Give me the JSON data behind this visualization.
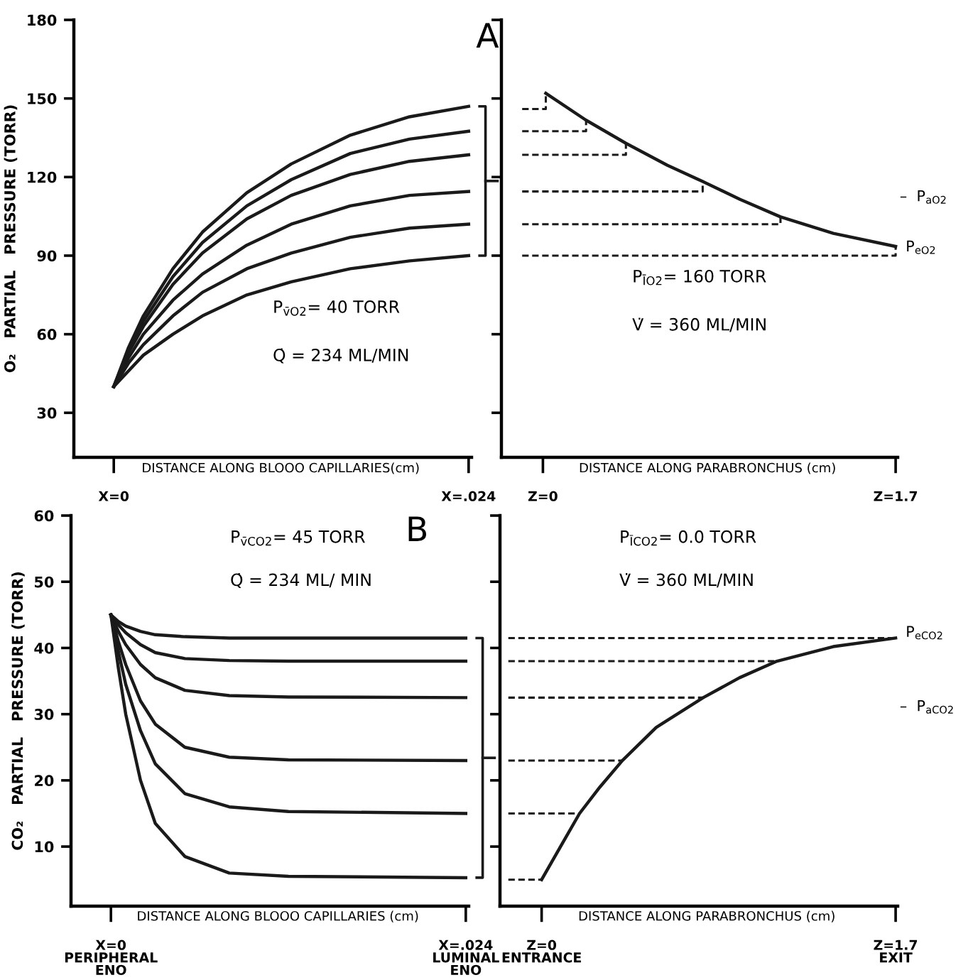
{
  "chart_data": [
    {
      "type": "line",
      "title": "A",
      "ylabel": "O₂   PARTIAL   PRESSURE (TORR)",
      "xlabel": "DISTANCE ALONG BLOOO CAPILLARIES(cm)",
      "xlim": [
        -0.0027,
        0.0242
      ],
      "ylim": [
        13,
        180
      ],
      "xticks": [
        {
          "value": 0,
          "label": "X=0"
        },
        {
          "value": 0.024,
          "label": "X=.024"
        }
      ],
      "yticks": [
        30,
        60,
        90,
        120,
        150,
        180
      ],
      "marker": "none",
      "line_style": "solid",
      "annotations": [
        "P$_{v̄O2}$= 40 TORR",
        "Q̇ = 234 ML/MIN"
      ],
      "series": [
        {
          "color": "#1a1a1a",
          "x": [
            0,
            0.001,
            0.002,
            0.004,
            0.006,
            0.009,
            0.012,
            0.016,
            0.02,
            0.024
          ],
          "values": [
            40,
            55,
            67,
            85,
            99,
            114,
            125,
            136,
            143,
            147
          ]
        },
        {
          "color": "#1a1a1a",
          "x": [
            0,
            0.001,
            0.002,
            0.004,
            0.006,
            0.009,
            0.012,
            0.016,
            0.02,
            0.024
          ],
          "values": [
            40,
            54,
            65,
            82,
            95,
            109,
            119,
            129,
            134.5,
            137.5
          ]
        },
        {
          "color": "#1a1a1a",
          "x": [
            0,
            0.001,
            0.002,
            0.004,
            0.006,
            0.009,
            0.012,
            0.016,
            0.02,
            0.024
          ],
          "values": [
            40,
            53,
            63,
            79,
            91,
            104,
            113,
            121,
            126,
            128.5
          ]
        },
        {
          "color": "#1a1a1a",
          "x": [
            0,
            0.001,
            0.002,
            0.004,
            0.006,
            0.009,
            0.012,
            0.016,
            0.02,
            0.024
          ],
          "values": [
            40,
            51,
            60,
            73,
            83,
            94,
            102,
            109,
            113,
            114.5
          ]
        },
        {
          "color": "#1a1a1a",
          "x": [
            0,
            0.001,
            0.002,
            0.004,
            0.006,
            0.009,
            0.012,
            0.016,
            0.02,
            0.024
          ],
          "values": [
            40,
            49,
            56,
            67,
            76,
            85,
            91,
            97,
            100.5,
            102
          ]
        },
        {
          "color": "#1a1a1a",
          "x": [
            0,
            0.001,
            0.002,
            0.004,
            0.006,
            0.009,
            0.012,
            0.016,
            0.02,
            0.024
          ],
          "values": [
            40,
            46,
            52,
            60,
            67,
            75,
            80,
            85,
            88,
            90
          ]
        }
      ]
    },
    {
      "type": "line",
      "xlabel": "DISTANCE ALONG PARABRONCHUS (cm)",
      "xlim": [
        -0.2,
        1.71
      ],
      "ylim": [
        13,
        180
      ],
      "xticks": [
        {
          "value": 0,
          "label": "Z=0"
        },
        {
          "value": 1.7,
          "label": "Z=1.7"
        }
      ],
      "yticks": [
        30,
        60,
        90,
        120,
        150,
        180
      ],
      "tick_labels": "x",
      "marker": "none",
      "line_style": "solid",
      "annotations": [
        "P$_{ĪO2}$= 160 TORR",
        "V̇ = 360 ML/MIN",
        "–  P$_{aO2}$",
        "P$_{eO2}$"
      ],
      "series": [
        {
          "color": "#1a1a1a",
          "x": [
            0.014,
            0.208,
            0.4,
            0.6,
            0.77,
            0.95,
            1.145,
            1.4,
            1.7
          ],
          "values": [
            152,
            141.7,
            132.9,
            124.5,
            118.3,
            111.5,
            104.8,
            98.5,
            93.5
          ]
        },
        {
          "color": "#1a1a1a",
          "line_style": "dashed",
          "x": [
            -0.1,
            0.014,
            0.014
          ],
          "values": [
            146,
            146,
            152
          ]
        },
        {
          "color": "#1a1a1a",
          "line_style": "dashed",
          "x": [
            -0.1,
            0.208,
            0.208
          ],
          "values": [
            137.5,
            137.5,
            141.7
          ]
        },
        {
          "color": "#1a1a1a",
          "line_style": "dashed",
          "x": [
            -0.1,
            0.4,
            0.4
          ],
          "values": [
            128.5,
            128.5,
            132.9
          ]
        },
        {
          "color": "#1a1a1a",
          "line_style": "dashed",
          "x": [
            -0.1,
            0.77,
            0.77
          ],
          "values": [
            114.5,
            114.5,
            118.3
          ]
        },
        {
          "color": "#1a1a1a",
          "line_style": "dashed",
          "x": [
            -0.1,
            1.145,
            1.145
          ],
          "values": [
            102,
            102,
            104.8
          ]
        },
        {
          "color": "#1a1a1a",
          "line_style": "dashed",
          "x": [
            -0.1,
            1.7,
            1.7
          ],
          "values": [
            90,
            90,
            93.5
          ]
        }
      ]
    },
    {
      "type": "line",
      "title": "B",
      "ylabel": "CO₂   PARTIAL   PRESSURE (TORR)",
      "xlabel": "DISTANCE ALONG BLOOO CAPILLARIES (cm)",
      "xlim": [
        -0.0027,
        0.0242
      ],
      "ylim": [
        1,
        60
      ],
      "xticks": [
        {
          "value": 0,
          "label": "X=0\nPERIPHERAL\nENO"
        },
        {
          "value": 0.024,
          "label": "X=.024\nLUMINAL\nENO"
        }
      ],
      "yticks": [
        10,
        20,
        30,
        40,
        50,
        60
      ],
      "marker": "none",
      "line_style": "solid",
      "annotations": [
        "P$_{v̄CO2}$= 45 TORR",
        "Q̇ = 234 ML/ MIN"
      ],
      "series": [
        {
          "color": "#1a1a1a",
          "x": [
            0,
            0.0005,
            0.001,
            0.002,
            0.003,
            0.005,
            0.008,
            0.012,
            0.024
          ],
          "values": [
            45,
            44,
            43.3,
            42.5,
            42,
            41.7,
            41.5,
            41.5,
            41.5
          ]
        },
        {
          "color": "#1a1a1a",
          "x": [
            0,
            0.0005,
            0.001,
            0.002,
            0.003,
            0.005,
            0.008,
            0.012,
            0.024
          ],
          "values": [
            45,
            43.5,
            42.3,
            40.5,
            39.3,
            38.4,
            38.1,
            38,
            38
          ]
        },
        {
          "color": "#1a1a1a",
          "x": [
            0,
            0.0005,
            0.001,
            0.002,
            0.003,
            0.005,
            0.008,
            0.012,
            0.024
          ],
          "values": [
            45,
            42.5,
            40.5,
            37.5,
            35.5,
            33.6,
            32.8,
            32.6,
            32.5
          ]
        },
        {
          "color": "#1a1a1a",
          "x": [
            0,
            0.0005,
            0.001,
            0.002,
            0.003,
            0.005,
            0.008,
            0.012,
            0.024
          ],
          "values": [
            45,
            41,
            37.5,
            32,
            28.5,
            25,
            23.5,
            23.1,
            23
          ]
        },
        {
          "color": "#1a1a1a",
          "x": [
            0,
            0.0005,
            0.001,
            0.002,
            0.003,
            0.005,
            0.008,
            0.012,
            0.024
          ],
          "values": [
            45,
            39.5,
            34.5,
            27.5,
            22.5,
            18,
            16,
            15.3,
            15
          ]
        },
        {
          "color": "#1a1a1a",
          "x": [
            0,
            0.0005,
            0.001,
            0.002,
            0.003,
            0.005,
            0.008,
            0.012,
            0.024
          ],
          "values": [
            45,
            37,
            30,
            20,
            13.5,
            8.5,
            6,
            5.5,
            5.3
          ]
        }
      ]
    },
    {
      "type": "line",
      "xlabel": "DISTANCE ALONG PARABRONCHUS (cm)",
      "xlim": [
        -0.2,
        1.71
      ],
      "ylim": [
        1,
        60
      ],
      "xticks": [
        {
          "value": 0,
          "label": "Z=0\nENTRANCE"
        },
        {
          "value": 1.7,
          "label": "Z=1.7\nEXIT"
        }
      ],
      "yticks": [
        10,
        20,
        30,
        40,
        50,
        60
      ],
      "tick_labels": "x",
      "marker": "none",
      "line_style": "solid",
      "annotations": [
        "P$_{ĪCO2}$= 0.0 TORR",
        "V̇ = 360 ML/MIN",
        "P$_{eCO2}$",
        "–  P$_{aCO2}$"
      ],
      "series": [
        {
          "color": "#1a1a1a",
          "x": [
            0,
            0.1,
            0.182,
            0.28,
            0.388,
            0.55,
            0.776,
            0.95,
            1.13,
            1.4,
            1.7
          ],
          "values": [
            5,
            10.5,
            15,
            19,
            23,
            28,
            32.5,
            35.5,
            38,
            40.2,
            41.5
          ]
        },
        {
          "color": "#1a1a1a",
          "line_style": "dashed",
          "x": [
            -0.16,
            1.7
          ],
          "values": [
            41.5,
            41.5
          ]
        },
        {
          "color": "#1a1a1a",
          "line_style": "dashed",
          "x": [
            -0.16,
            1.13
          ],
          "values": [
            38,
            38
          ]
        },
        {
          "color": "#1a1a1a",
          "line_style": "dashed",
          "x": [
            -0.16,
            0.776
          ],
          "values": [
            32.5,
            32.5
          ]
        },
        {
          "color": "#1a1a1a",
          "line_style": "dashed",
          "x": [
            -0.16,
            0.388
          ],
          "values": [
            23,
            23
          ]
        },
        {
          "color": "#1a1a1a",
          "line_style": "dashed",
          "x": [
            -0.16,
            0.182
          ],
          "values": [
            15,
            15
          ]
        },
        {
          "color": "#1a1a1a",
          "line_style": "dashed",
          "x": [
            -0.16,
            0
          ],
          "values": [
            5,
            5
          ]
        }
      ]
    }
  ]
}
